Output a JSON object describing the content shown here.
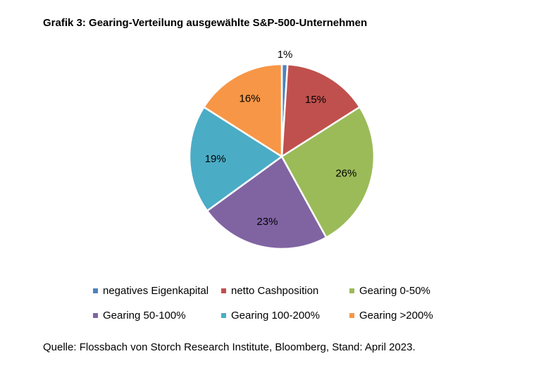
{
  "chart_data": {
    "type": "pie",
    "title": "Grafik 3: Gearing-Verteilung ausgewählte S&P-500-Unternehmen",
    "slices": [
      {
        "label": "negatives Eigenkapital",
        "value": 1,
        "display": "1%",
        "color": "#4f81bd"
      },
      {
        "label": "netto Cashposition",
        "value": 15,
        "display": "15%",
        "color": "#c0504d"
      },
      {
        "label": "Gearing 0-50%",
        "value": 26,
        "display": "26%",
        "color": "#9bbb59"
      },
      {
        "label": "Gearing 50-100%",
        "value": 23,
        "display": "23%",
        "color": "#8064a2"
      },
      {
        "label": "Gearing 100-200%",
        "value": 19,
        "display": "19%",
        "color": "#4bacc6"
      },
      {
        "label": "Gearing >200%",
        "value": 16,
        "display": "16%",
        "color": "#f79646"
      }
    ],
    "legend_position": "bottom",
    "source": "Quelle: Flossbach von Storch Research Institute, Bloomberg, Stand: April 2023."
  }
}
